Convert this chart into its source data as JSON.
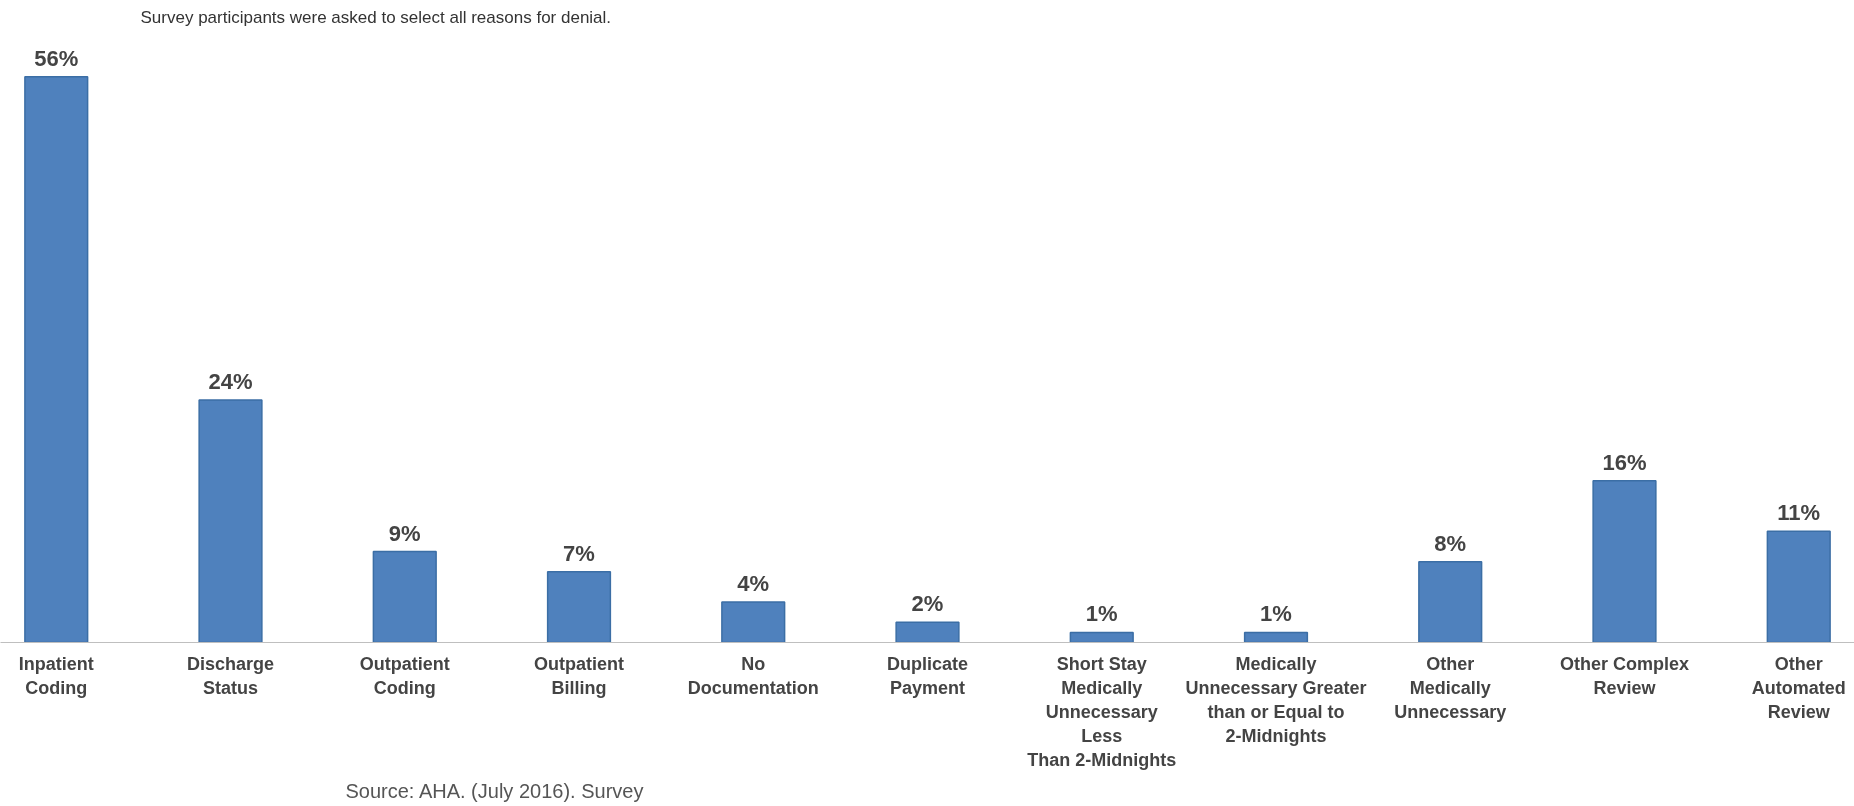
{
  "chart_data": {
    "type": "bar",
    "subtitle": "Survey participants were asked to select all reasons for denial.",
    "categories": [
      "Inpatient\nCoding",
      "Discharge\nStatus",
      "Outpatient\nCoding",
      "Outpatient\nBilling",
      "No\nDocumentation",
      "Duplicate\nPayment",
      "Short Stay\nMedically\nUnnecessary\nLess\nThan 2-Midnights",
      "Medically\nUnnecessary Greater\nthan or Equal to\n2-Midnights",
      "Other\nMedically\nUnnecessary",
      "Other Complex\nReview",
      "Other\nAutomated\nReview"
    ],
    "values": [
      56,
      24,
      9,
      7,
      4,
      2,
      1,
      1,
      8,
      16,
      11
    ],
    "color": "#4f81bd",
    "data_labels": true,
    "value_labels": [
      "56%",
      "24%",
      "9%",
      "7%",
      "4%",
      "2%",
      "1%",
      "1%",
      "8%",
      "16%",
      "11%"
    ],
    "annotations": [
      "Source:  AHA. (July 2016). Survey"
    ],
    "grid": false
  }
}
